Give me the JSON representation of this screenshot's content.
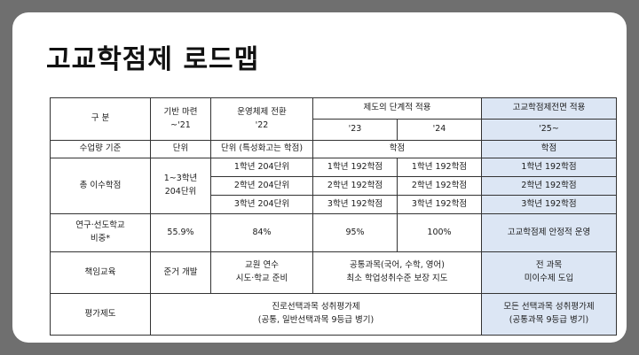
{
  "title": "고교학점제 로드맵",
  "headers": {
    "gubun": "구 분",
    "base_line1": "기반 마련",
    "base_line2": "~'21",
    "transition_line1": "운영체제 전환",
    "transition_line2": "'22",
    "phase": "제도의 단계적 적용",
    "y23": "'23",
    "y24": "'24",
    "full_line1": "고교학점제전면 적용",
    "full_line2": "'25~"
  },
  "rows": {
    "unit": {
      "label": "수업량 기준",
      "base": "단위",
      "transition": "단위 (특성화고는 학점)",
      "phase": "학점",
      "full": "학점"
    },
    "credits": {
      "label": "총 이수학점",
      "base_line1": "1~3학년",
      "base_line2": "204단위",
      "transition": [
        "1학년 204단위",
        "2학년 204단위",
        "3학년 204단위"
      ],
      "y23": [
        "1학년 192학점",
        "2학년 192학점",
        "3학년 192학점"
      ],
      "y24": [
        "1학년 192학점",
        "2학년 192학점",
        "3학년 192학점"
      ],
      "full": [
        "1학년 192학점",
        "2학년 192학점",
        "3학년 192학점"
      ]
    },
    "ratio": {
      "label_line1": "연구·선도학교",
      "label_line2": "비중*",
      "base": "55.9%",
      "transition": "84%",
      "y23": "95%",
      "y24": "100%",
      "full": "고교학점제 안정적 운영"
    },
    "responsibility": {
      "label": "책임교육",
      "base": "준거 개발",
      "transition_line1": "교원 연수",
      "transition_line2": "시도·학교 준비",
      "phase_line1": "공통과목(국어, 수학, 영어)",
      "phase_line2": "최소 학업성취수준 보장 지도",
      "full_line1": "전 과목",
      "full_line2": "미이수제 도입"
    },
    "evaluation": {
      "label": "평가제도",
      "main_line1": "진로선택과목 성취평가제",
      "main_line2": "(공통, 일반선택과목 9등급 병기)",
      "full_line1": "모든 선택과목 성취평가제",
      "full_line2": "(공통과목 9등급 병기)"
    }
  }
}
